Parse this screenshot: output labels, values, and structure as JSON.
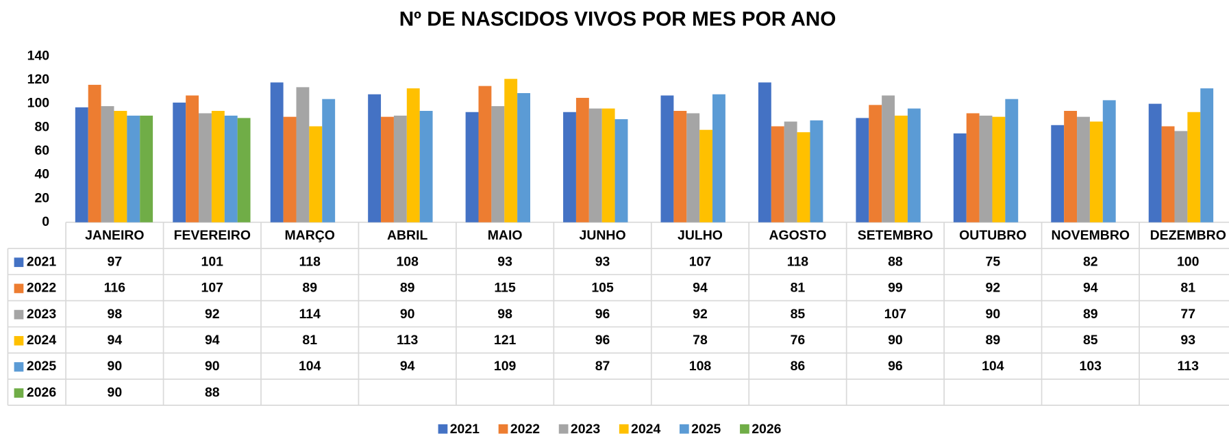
{
  "chart_data": {
    "type": "bar",
    "title": "Nº DE NASCIDOS VIVOS POR MES POR ANO",
    "categories": [
      "JANEIRO",
      "FEVEREIRO",
      "MARÇO",
      "ABRIL",
      "MAIO",
      "JUNHO",
      "JULHO",
      "AGOSTO",
      "SETEMBRO",
      "OUTUBRO",
      "NOVEMBRO",
      "DEZEMBRO"
    ],
    "series": [
      {
        "name": "2021",
        "color": "#4472c4",
        "values": [
          97,
          101,
          118,
          108,
          93,
          93,
          107,
          118,
          88,
          75,
          82,
          100
        ]
      },
      {
        "name": "2022",
        "color": "#ed7d31",
        "values": [
          116,
          107,
          89,
          89,
          115,
          105,
          94,
          81,
          99,
          92,
          94,
          81
        ]
      },
      {
        "name": "2023",
        "color": "#a5a5a5",
        "values": [
          98,
          92,
          114,
          90,
          98,
          96,
          92,
          85,
          107,
          90,
          89,
          77
        ]
      },
      {
        "name": "2024",
        "color": "#ffc000",
        "values": [
          94,
          94,
          81,
          113,
          121,
          96,
          78,
          76,
          90,
          89,
          85,
          93
        ]
      },
      {
        "name": "2025",
        "color": "#5b9bd5",
        "values": [
          90,
          90,
          104,
          94,
          109,
          87,
          108,
          86,
          96,
          104,
          103,
          113
        ]
      },
      {
        "name": "2026",
        "color": "#70ad47",
        "values": [
          90,
          88,
          null,
          null,
          null,
          null,
          null,
          null,
          null,
          null,
          null,
          null
        ]
      }
    ],
    "ylim": [
      0,
      140
    ],
    "yticks": [
      0,
      20,
      40,
      60,
      80,
      100,
      120,
      140
    ],
    "grid": false,
    "legend": "bottom"
  }
}
